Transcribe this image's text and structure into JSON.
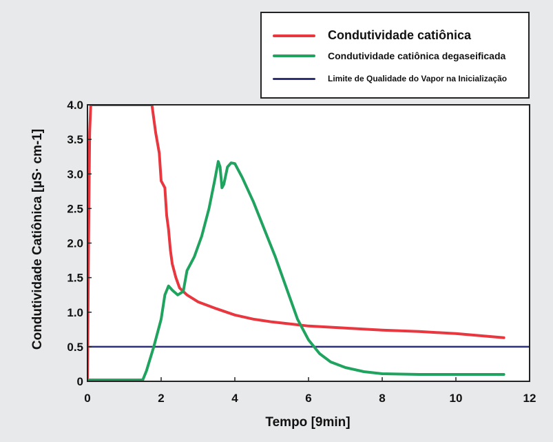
{
  "chart_data": {
    "type": "line",
    "xlabel": "Tempo [9min]",
    "ylabel": "Condutividade Catiônica [µS· cm-1]",
    "xlim": [
      0,
      12
    ],
    "ylim": [
      0,
      4.0
    ],
    "x_ticks": [
      "0",
      "2",
      "4",
      "6",
      "8",
      "10",
      "12"
    ],
    "y_ticks": [
      "0",
      "0.5",
      "1.0",
      "1.5",
      "2.0",
      "2.5",
      "3.0",
      "3.5",
      "4.0"
    ],
    "grid": false,
    "legend_position": "top-right",
    "series": [
      {
        "name": "Condutividade catiônica",
        "color": "#e8373f",
        "points": [
          [
            0.0,
            0.05
          ],
          [
            0.03,
            2.0
          ],
          [
            0.06,
            3.6
          ],
          [
            0.09,
            4.0
          ],
          [
            1.75,
            4.0
          ],
          [
            1.85,
            3.6
          ],
          [
            1.95,
            3.3
          ],
          [
            2.0,
            2.9
          ],
          [
            2.1,
            2.8
          ],
          [
            2.15,
            2.4
          ],
          [
            2.2,
            2.2
          ],
          [
            2.25,
            1.9
          ],
          [
            2.3,
            1.7
          ],
          [
            2.4,
            1.5
          ],
          [
            2.5,
            1.35
          ],
          [
            2.7,
            1.25
          ],
          [
            3.0,
            1.15
          ],
          [
            3.5,
            1.05
          ],
          [
            4.0,
            0.96
          ],
          [
            4.5,
            0.9
          ],
          [
            5.0,
            0.86
          ],
          [
            5.5,
            0.83
          ],
          [
            6.0,
            0.8
          ],
          [
            7.0,
            0.77
          ],
          [
            8.0,
            0.74
          ],
          [
            9.0,
            0.72
          ],
          [
            10.0,
            0.69
          ],
          [
            11.3,
            0.63
          ]
        ]
      },
      {
        "name": "Condutividade catiônica degaseificada",
        "color": "#1fa35f",
        "points": [
          [
            0.0,
            0.02
          ],
          [
            1.5,
            0.02
          ],
          [
            1.6,
            0.15
          ],
          [
            1.8,
            0.5
          ],
          [
            2.0,
            0.9
          ],
          [
            2.1,
            1.25
          ],
          [
            2.2,
            1.38
          ],
          [
            2.3,
            1.32
          ],
          [
            2.45,
            1.25
          ],
          [
            2.6,
            1.3
          ],
          [
            2.7,
            1.6
          ],
          [
            2.9,
            1.8
          ],
          [
            3.1,
            2.1
          ],
          [
            3.3,
            2.5
          ],
          [
            3.45,
            2.9
          ],
          [
            3.55,
            3.18
          ],
          [
            3.6,
            3.1
          ],
          [
            3.65,
            2.8
          ],
          [
            3.7,
            2.85
          ],
          [
            3.8,
            3.1
          ],
          [
            3.9,
            3.16
          ],
          [
            4.0,
            3.15
          ],
          [
            4.2,
            2.95
          ],
          [
            4.5,
            2.6
          ],
          [
            4.8,
            2.2
          ],
          [
            5.1,
            1.8
          ],
          [
            5.4,
            1.35
          ],
          [
            5.7,
            0.9
          ],
          [
            6.0,
            0.6
          ],
          [
            6.3,
            0.4
          ],
          [
            6.6,
            0.28
          ],
          [
            7.0,
            0.2
          ],
          [
            7.5,
            0.14
          ],
          [
            8.0,
            0.11
          ],
          [
            9.0,
            0.1
          ],
          [
            10.0,
            0.1
          ],
          [
            11.3,
            0.1
          ]
        ]
      },
      {
        "name": "Limite de Qualidade do Vapor na Inicialização",
        "color": "#2b2f7a",
        "points": [
          [
            0,
            0.5
          ],
          [
            12,
            0.5
          ]
        ]
      }
    ]
  }
}
